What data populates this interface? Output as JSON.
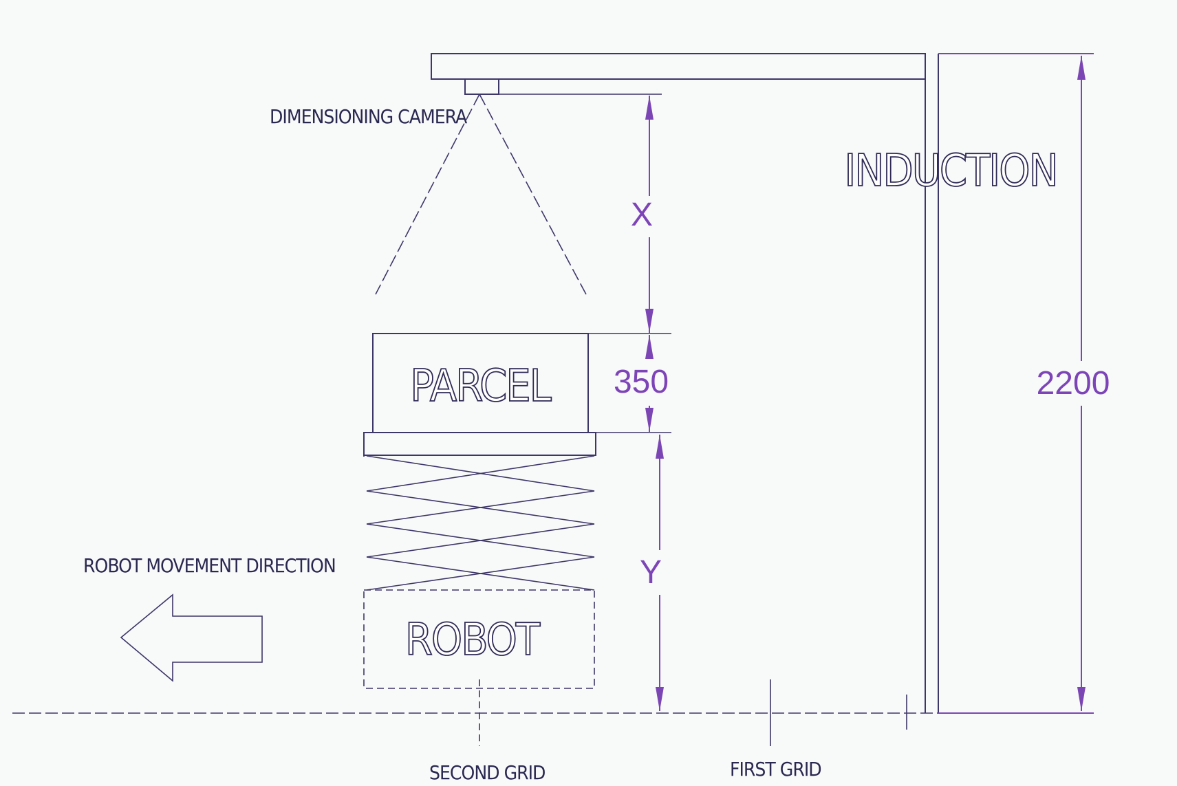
{
  "labels": {
    "dimensioning_camera": "DIMENSIONING CAMERA",
    "induction": "INDUCTION",
    "parcel": "PARCEL",
    "robot": "ROBOT",
    "robot_movement_direction": "ROBOT MOVEMENT DIRECTION",
    "second_grid": "SECOND GRID",
    "first_grid": "FIRST GRID"
  },
  "dimensions": {
    "x": "X",
    "parcel_height": "350",
    "y": "Y",
    "total_height": "2200"
  },
  "colors": {
    "background": "#f8f9f9",
    "line": "#3d3668",
    "dimension": "#7b46b3"
  }
}
